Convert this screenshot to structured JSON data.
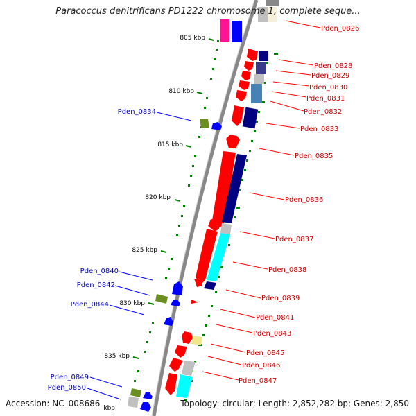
{
  "title": "Paracoccus denitrificans PD1222 chromosome 1, complete seque...",
  "footer": {
    "accession": "Accession: NC_008686",
    "topology": "Topology: circular; Length: 2,852,282 bp; Genes: 2,850"
  },
  "kbp_labels": [
    "805 kbp",
    "810 kbp",
    "815 kbp",
    "820 kbp",
    "825 kbp",
    "830 kbp",
    "835 kbp",
    "kbp"
  ],
  "forward_labels": [
    "Pden_0826",
    "Pden_0828",
    "Pden_0829",
    "Pden_0830",
    "Pden_0831",
    "Pden_0832",
    "Pden_0833",
    "Pden_0835",
    "Pden_0836",
    "Pden_0837",
    "Pden_0838",
    "Pden_0839",
    "Pden_0841",
    "Pden_0843",
    "Pden_0845",
    "Pden_0846",
    "Pden_0847"
  ],
  "reverse_labels": [
    "Pden_0834",
    "Pden_0840",
    "Pden_0842",
    "Pden_0844",
    "Pden_0849",
    "Pden_0850"
  ],
  "colors": {
    "forward_gene": "#ff0000",
    "reverse_gene": "#0000ff",
    "forward_label": "#cc0000",
    "reverse_label": "#0000aa",
    "backbone": "#888888",
    "tick": "#008000",
    "navy": "#000080",
    "cyan": "#00ffff",
    "olive": "#6b8e23",
    "pink": "#ff1493",
    "steel": "#4682b4",
    "gray": "#c0c0c0",
    "khaki": "#f0e68c"
  }
}
